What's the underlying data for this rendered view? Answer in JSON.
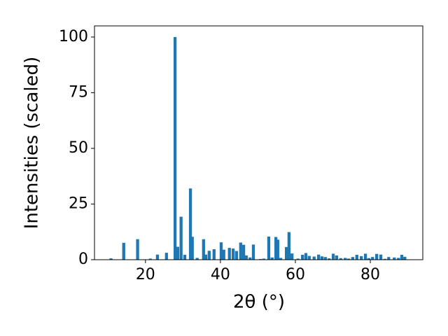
{
  "chart_data": {
    "type": "bar",
    "x_label": "2θ (°)",
    "y_label": "Intensities (scaled)",
    "x": [
      10.8,
      14.2,
      17.9,
      21.3,
      23.2,
      25.6,
      27.9,
      28.6,
      29.5,
      30.5,
      32.0,
      32.5,
      33.8,
      35.5,
      36.1,
      37.0,
      38.3,
      40.2,
      40.9,
      42.4,
      43.4,
      44.3,
      45.4,
      46.2,
      46.9,
      47.9,
      48.8,
      50.7,
      51.6,
      52.9,
      53.8,
      54.8,
      55.3,
      56.1,
      57.6,
      58.3,
      59.1,
      60.7,
      61.9,
      62.8,
      63.7,
      65.0,
      66.2,
      67.1,
      68.0,
      69.0,
      70.1,
      71.0,
      72.1,
      73.3,
      74.2,
      75.3,
      76.4,
      77.6,
      78.7,
      79.6,
      80.6,
      81.7,
      82.8,
      83.9,
      84.9,
      86.4,
      87.5,
      88.4,
      89.2
    ],
    "values": [
      0.6,
      7.6,
      9.2,
      0.5,
      2.3,
      3.1,
      100,
      5.8,
      19.3,
      2.2,
      32,
      10.3,
      0.8,
      9.2,
      2.3,
      4.0,
      4.7,
      7.8,
      4.5,
      5.3,
      5.0,
      3.9,
      7.7,
      6.7,
      1.9,
      1.0,
      6.8,
      0.3,
      0.5,
      10.4,
      1.0,
      10.2,
      9.0,
      0.8,
      5.7,
      12.4,
      2.8,
      0.5,
      2.2,
      3.0,
      1.7,
      1.4,
      2.3,
      1.5,
      1.2,
      0.6,
      2.7,
      1.9,
      0.7,
      0.8,
      0.5,
      1.2,
      2.2,
      1.6,
      2.7,
      0.7,
      1.2,
      2.6,
      2.3,
      0.4,
      1.2,
      1.0,
      0.8,
      2.2,
      1.3
    ],
    "color": "#1f77b4",
    "xlim": [
      6.4,
      94
    ],
    "xticks": [
      20,
      40,
      60,
      80
    ],
    "ylim": [
      0,
      105
    ],
    "yticks": [
      0,
      25,
      50,
      75,
      100
    ]
  }
}
